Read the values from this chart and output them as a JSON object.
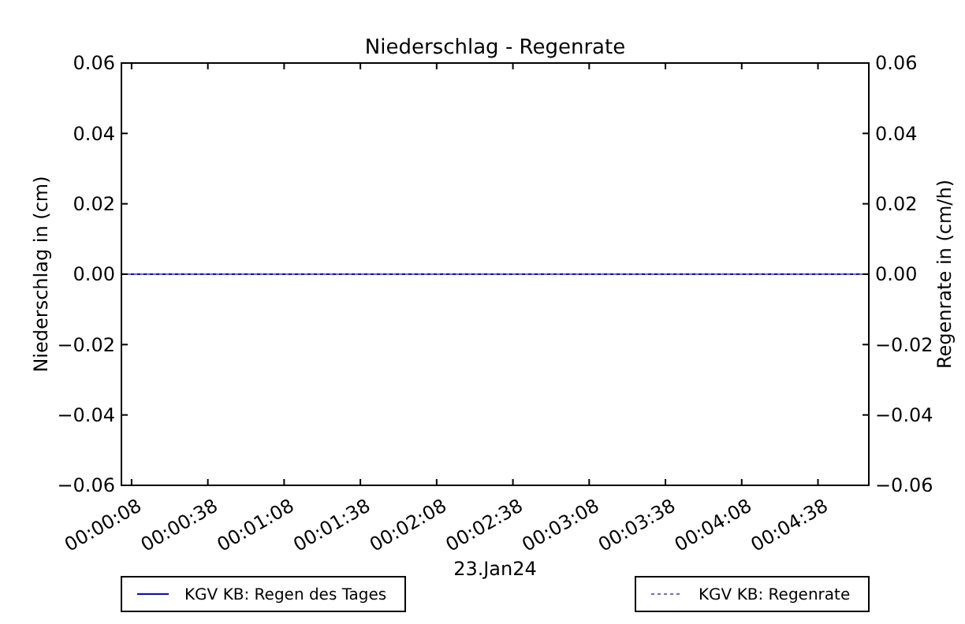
{
  "chart_data": {
    "type": "line",
    "title": "Niederschlag - Regenrate",
    "xlabel": "23.Jan24",
    "ylabel": "Niederschlag in (cm)",
    "y2label": "Regenrate in (cm/h)",
    "x": [
      0.001111,
      0.082778
    ],
    "series": [
      {
        "name": "KGV KB: Regen des Tages",
        "color": "#0000ff",
        "line_style": "solid",
        "values": [
          0,
          0
        ]
      },
      {
        "name": "KGV KB: Regenrate",
        "color": "#6666ff",
        "line_style": "dotted",
        "axis": "y2",
        "values": [
          0,
          0
        ]
      }
    ],
    "xlim": [
      0.001111,
      0.082778
    ],
    "xticks": [
      {
        "value": 0.002222,
        "label": "00:00:08"
      },
      {
        "value": 0.010556,
        "label": "00:00:38"
      },
      {
        "value": 0.018889,
        "label": "00:01:08"
      },
      {
        "value": 0.027222,
        "label": "00:01:38"
      },
      {
        "value": 0.035556,
        "label": "00:02:08"
      },
      {
        "value": 0.043889,
        "label": "00:02:38"
      },
      {
        "value": 0.052222,
        "label": "00:03:08"
      },
      {
        "value": 0.060556,
        "label": "00:03:38"
      },
      {
        "value": 0.068889,
        "label": "00:04:08"
      },
      {
        "value": 0.077222,
        "label": "00:04:38"
      }
    ],
    "ylim": [
      -0.06,
      0.06
    ],
    "yticks": [
      {
        "value": -0.06,
        "label": "−0.06"
      },
      {
        "value": -0.04,
        "label": "−0.04"
      },
      {
        "value": -0.02,
        "label": "−0.02"
      },
      {
        "value": 0,
        "label": "0.00"
      },
      0.02,
      0.04,
      0.06
    ],
    "y2lim": [
      -0.06,
      0.06
    ],
    "y2ticks": [
      {
        "value": -0.06,
        "label": "−0.06"
      },
      {
        "value": -0.04,
        "label": "−0.04"
      },
      {
        "value": -0.02,
        "label": "−0.02"
      },
      {
        "value": 0,
        "label": "0.00"
      },
      0.02,
      0.04,
      0.06
    ],
    "legend": "bottom",
    "grid": false,
    "marker": "none"
  }
}
